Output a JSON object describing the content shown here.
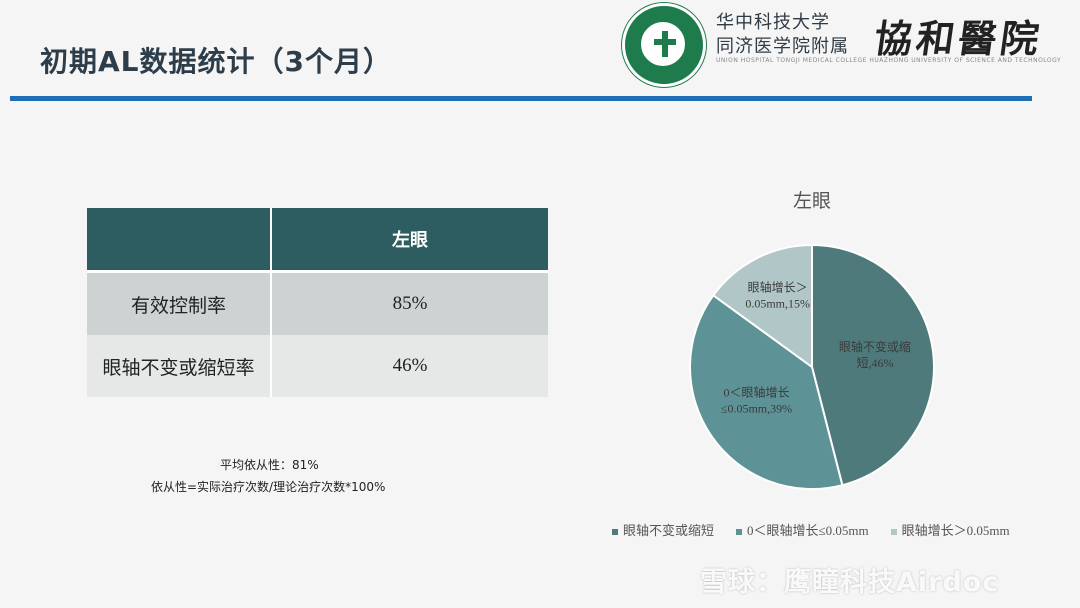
{
  "header": {
    "title": "初期AL数据统计（3个月）",
    "logo_line1": "华中科技大学",
    "logo_line2": "同济医学院附属",
    "logo_calligraphy": "協和醫院",
    "logo_subtitle": "UNION HOSPITAL TONGJI MEDICAL COLLEGE HUAZHONG UNIVERSITY OF SCIENCE AND TECHNOLOGY",
    "rule_color": "#1f6fb6"
  },
  "table": {
    "header_col2": "左眼",
    "rows": [
      {
        "label": "有效控制率",
        "value": "85%"
      },
      {
        "label": "眼轴不变或缩短率",
        "value": "46%"
      }
    ]
  },
  "notes": {
    "line1": "平均依从性：81%",
    "line2": "依从性=实际治疗次数/理论治疗次数*100%"
  },
  "chart_data": {
    "type": "pie",
    "title": "左眼",
    "slices": [
      {
        "name": "眼轴不变或缩短",
        "value": 46,
        "color": "#4f7a7c",
        "label_lines": [
          "眼轴不变或缩",
          "短,46%"
        ]
      },
      {
        "name": "0＜眼轴增长≤0.05mm",
        "value": 39,
        "color": "#5d9396",
        "label_lines": [
          "0＜眼轴增长",
          "≤0.05mm,39%"
        ]
      },
      {
        "name": "眼轴增长＞0.05mm",
        "value": 15,
        "color": "#b1c6c6",
        "label_lines": [
          "眼轴增长＞",
          "0.05mm,15%"
        ]
      }
    ],
    "legend_position": "bottom"
  },
  "watermark": "雪球：鹰瞳科技Airdoc"
}
